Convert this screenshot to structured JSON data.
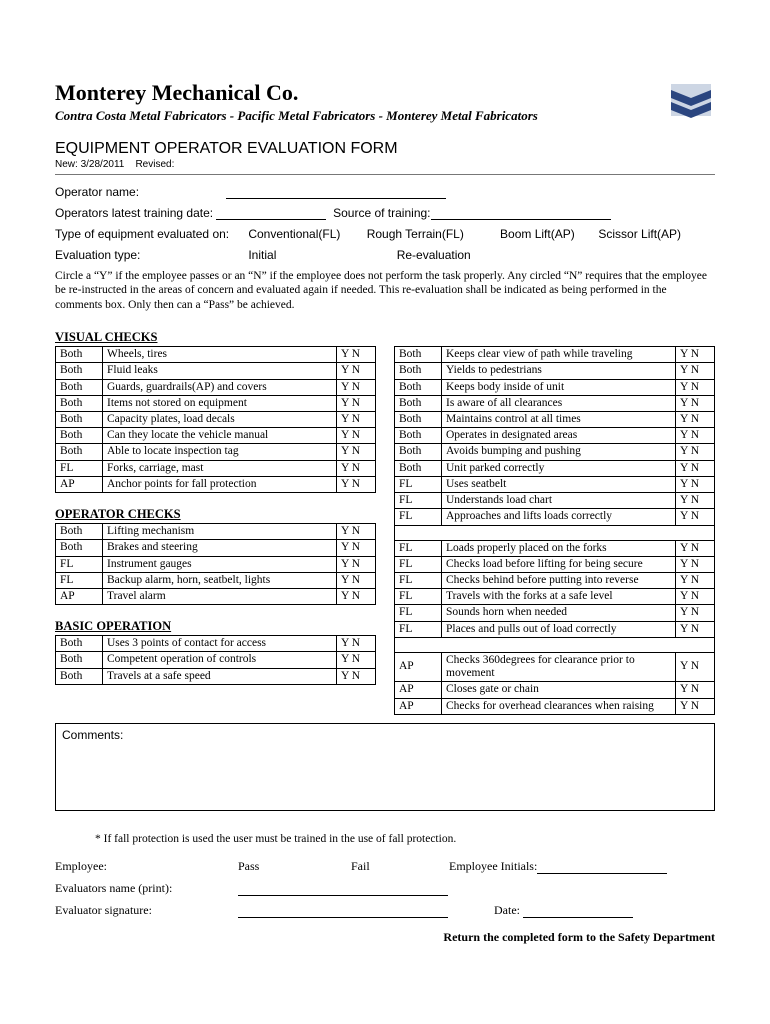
{
  "company": "Monterey Mechanical Co.",
  "subsidiaries": "Contra Costa Metal Fabricators - Pacific Metal Fabricators - Monterey Metal Fabricators",
  "form_title": "EQUIPMENT OPERATOR EVALUATION FORM",
  "meta": {
    "new_label": "New:",
    "new_date": "3/28/2011",
    "revised_label": "Revised:"
  },
  "logo_colors": {
    "primary": "#2b4680",
    "light": "#cdd6e4"
  },
  "info": {
    "operator_name": "Operator name:",
    "training_date": "Operators latest training date:",
    "source_training": "Source of training:",
    "equipment_type": "Type of equipment evaluated on:",
    "eq_options": [
      "Conventional(FL)",
      "Rough Terrain(FL)",
      "Boom Lift(AP)",
      "Scissor Lift(AP)"
    ],
    "eval_type": "Evaluation type:",
    "eval_opt1": "Initial",
    "eval_opt2": "Re-evaluation"
  },
  "instructions": "Circle a “Y” if the employee passes or an “N” if the employee does not perform the task properly.  Any circled “N” requires that the employee be re-instructed in the areas of concern and evaluated again if needed.  This re-evaluation shall be indicated as being performed in the comments box.  Only then can a “Pass” be achieved.",
  "yn": "Y N",
  "sections": {
    "visual_title": "VISUAL CHECKS",
    "visual": [
      [
        "Both",
        "Wheels, tires"
      ],
      [
        "Both",
        "Fluid leaks"
      ],
      [
        "Both",
        "Guards, guardrails(AP) and covers"
      ],
      [
        "Both",
        "Items not stored on equipment"
      ],
      [
        "Both",
        "Capacity plates, load decals"
      ],
      [
        "Both",
        "Can they locate the vehicle manual"
      ],
      [
        "Both",
        "Able to locate inspection tag"
      ],
      [
        "FL",
        "Forks, carriage, mast"
      ],
      [
        "AP",
        "Anchor points for fall protection"
      ]
    ],
    "operator_title": "OPERATOR CHECKS",
    "operator": [
      [
        "Both",
        "Lifting mechanism"
      ],
      [
        "Both",
        "Brakes and steering"
      ],
      [
        "FL",
        "Instrument gauges"
      ],
      [
        "FL",
        "Backup alarm, horn, seatbelt, lights"
      ],
      [
        "AP",
        "Travel alarm"
      ]
    ],
    "basic_title": "BASIC OPERATION",
    "basic": [
      [
        "Both",
        "Uses 3 points of contact for access"
      ],
      [
        "Both",
        "Competent operation of controls"
      ],
      [
        "Both",
        "Travels at a safe speed"
      ]
    ],
    "right": [
      [
        "Both",
        "Keeps clear view of path while traveling"
      ],
      [
        "Both",
        "Yields to pedestrians"
      ],
      [
        "Both",
        "Keeps body inside of unit"
      ],
      [
        "Both",
        "Is aware of all clearances"
      ],
      [
        "Both",
        "Maintains control at all times"
      ],
      [
        "Both",
        "Operates in designated areas"
      ],
      [
        "Both",
        "Avoids bumping and pushing"
      ],
      [
        "Both",
        "Unit parked correctly"
      ],
      [
        "FL",
        "Uses seatbelt"
      ],
      [
        "FL",
        "Understands load chart"
      ],
      [
        "FL",
        "Approaches and lifts loads correctly"
      ]
    ],
    "right2": [
      [
        "FL",
        "Loads properly placed on the forks"
      ],
      [
        "FL",
        "Checks load before lifting for being secure"
      ],
      [
        "FL",
        "Checks behind before putting into reverse"
      ],
      [
        "FL",
        "Travels with the forks at a safe level"
      ],
      [
        "FL",
        "Sounds horn when needed"
      ],
      [
        "FL",
        "Places and pulls out of load correctly"
      ]
    ],
    "right3": [
      [
        "AP",
        "Checks 360degrees for clearance prior to movement"
      ],
      [
        "AP",
        "Closes gate or chain"
      ],
      [
        "AP",
        "Checks for overhead clearances when raising"
      ]
    ]
  },
  "comments_label": "Comments:",
  "footnote": "* If fall protection is used the user must be trained in the use of fall protection.",
  "sig": {
    "employee": "Employee:",
    "pass": "Pass",
    "fail": "Fail",
    "initials": "Employee Initials:",
    "eval_name": "Evaluators name (print):",
    "eval_sig": "Evaluator signature:",
    "date": "Date:"
  },
  "return_line": "Return the completed form to the Safety Department"
}
